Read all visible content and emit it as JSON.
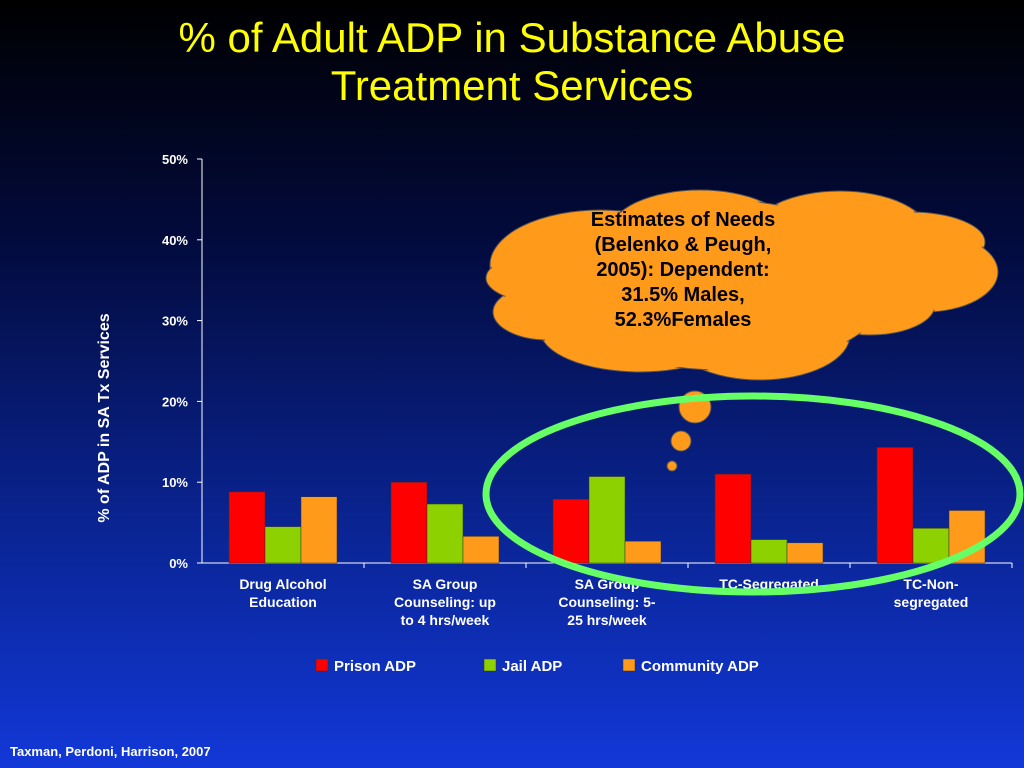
{
  "slide": {
    "title_lines": [
      "% of Adult ADP in Substance Abuse",
      "Treatment Services"
    ],
    "footer": "Taxman, Perdoni, Harrison, 2007"
  },
  "callout": {
    "lines": [
      "Estimates of Needs",
      "(Belenko & Peugh,",
      "2005):  Dependent:",
      "31.5% Males,",
      "52.3%Females"
    ],
    "fill_color": "#ff9a1a",
    "highlight_color": "#66ff66"
  },
  "chart_data": {
    "type": "bar",
    "title": "",
    "ylabel": "% of ADP in SA Tx Services",
    "xlabel": "",
    "ylim": [
      0,
      50
    ],
    "y_ticks": [
      "0%",
      "10%",
      "20%",
      "30%",
      "40%",
      "50%"
    ],
    "grid": false,
    "legend": "bottom",
    "categories": [
      [
        "Drug Alcohol",
        "Education"
      ],
      [
        "SA Group",
        "Counseling:  up",
        "to 4 hrs/week"
      ],
      [
        "SA Group",
        "Counseling: 5-",
        "25 hrs/week"
      ],
      [
        "TC-Segregated"
      ],
      [
        "TC-Non-",
        "segregated"
      ]
    ],
    "series": [
      {
        "name": "Prison ADP",
        "color": "#ff0000",
        "values": [
          8.8,
          10.0,
          7.9,
          11.0,
          14.3
        ]
      },
      {
        "name": "Jail ADP",
        "color": "#8ed100",
        "values": [
          4.5,
          7.3,
          10.7,
          2.9,
          4.3
        ]
      },
      {
        "name": "Community ADP",
        "color": "#ff9a1a",
        "values": [
          8.2,
          3.3,
          2.7,
          2.5,
          6.5
        ]
      }
    ]
  }
}
